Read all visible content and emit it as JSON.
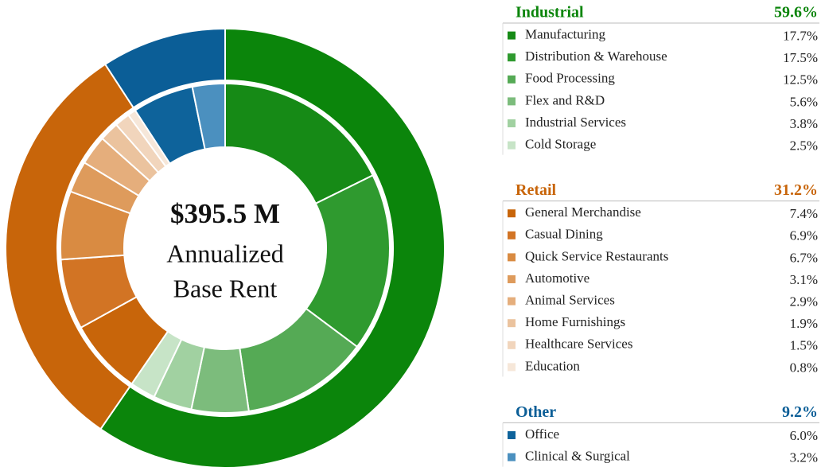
{
  "chart_data": {
    "type": "nested-donut",
    "center_text": [
      "$395.5 M",
      "Annualized",
      "Base Rent"
    ],
    "series": [
      {
        "name": "Industrial",
        "color": "#0b850b",
        "value": 59.6,
        "value_label": "59.6%",
        "categories": [
          "Manufacturing",
          "Distribution & Warehouse",
          "Food Processing",
          "Flex and R&D",
          "Industrial Services",
          "Cold Storage"
        ],
        "values": [
          17.7,
          17.5,
          12.5,
          5.6,
          3.8,
          2.5
        ],
        "value_labels": [
          "17.7%",
          "17.5%",
          "12.5%",
          "5.6%",
          "3.8%",
          "2.5%"
        ],
        "colors": [
          "#168a16",
          "#2f9a2f",
          "#55aa55",
          "#7cbc7c",
          "#a1d1a1",
          "#c7e4c7"
        ]
      },
      {
        "name": "Retail",
        "color": "#c8650a",
        "value": 31.2,
        "value_label": "31.2%",
        "categories": [
          "General Merchandise",
          "Casual Dining",
          "Quick Service Restaurants",
          "Automotive",
          "Animal Services",
          "Home Furnishings",
          "Healthcare Services",
          "Education"
        ],
        "values": [
          7.4,
          6.9,
          6.7,
          3.1,
          2.9,
          1.9,
          1.5,
          0.8
        ],
        "value_labels": [
          "7.4%",
          "6.9%",
          "6.7%",
          "3.1%",
          "2.9%",
          "1.9%",
          "1.5%",
          "0.8%"
        ],
        "colors": [
          "#c8650a",
          "#d27424",
          "#d98b42",
          "#de9b5c",
          "#e5ae7c",
          "#ebc39e",
          "#f1d5bc",
          "#f6e7d9"
        ]
      },
      {
        "name": "Other",
        "color": "#0b5e97",
        "value": 9.2,
        "value_label": "9.2%",
        "categories": [
          "Office",
          "Clinical & Surgical"
        ],
        "values": [
          6.0,
          3.2
        ],
        "value_labels": [
          "6.0%",
          "3.2%"
        ],
        "colors": [
          "#0e639b",
          "#4b90bf"
        ]
      }
    ]
  }
}
